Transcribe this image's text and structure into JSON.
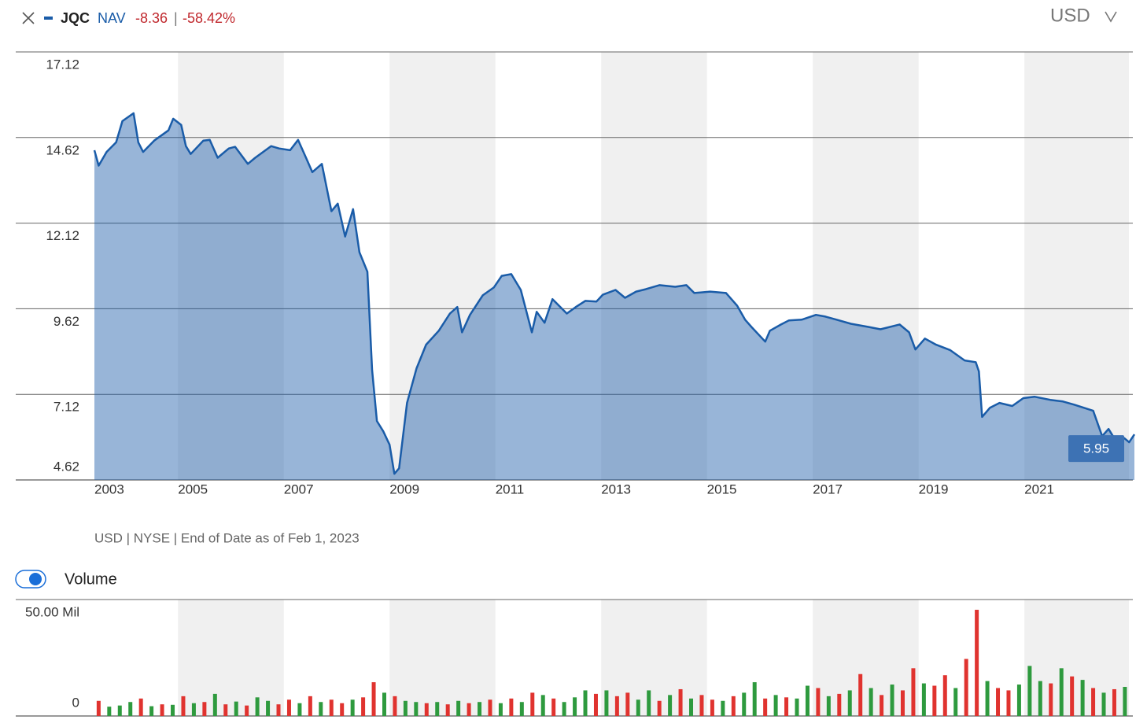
{
  "header": {
    "measure": "NAV",
    "change": "-8.36",
    "separator": "|",
    "change_pct": "-58.42%",
    "currency": "USD",
    "note": "USD | NYSE | End of Date as of Feb 1, 2023"
  },
  "chart_data": [
    {
      "type": "area",
      "series": [
        {
          "name": "JQC",
          "color": "#1a5ca8",
          "x": [
            2003.42,
            2003.5,
            2003.65,
            2003.83,
            2003.95,
            2004.16,
            2004.25,
            2004.34,
            2004.55,
            2004.82,
            2004.91,
            2005.06,
            2005.15,
            2005.24,
            2005.48,
            2005.6,
            2005.75,
            2005.96,
            2006.08,
            2006.32,
            2006.46,
            2006.76,
            2006.91,
            2007.12,
            2007.27,
            2007.42,
            2007.54,
            2007.72,
            2007.9,
            2008.02,
            2008.16,
            2008.31,
            2008.43,
            2008.58,
            2008.67,
            2008.76,
            2008.88,
            2009.0,
            2009.09,
            2009.18,
            2009.33,
            2009.51,
            2009.69,
            2009.93,
            2010.14,
            2010.28,
            2010.37,
            2010.52,
            2010.76,
            2010.97,
            2011.12,
            2011.3,
            2011.48,
            2011.69,
            2011.78,
            2011.93,
            2012.08,
            2012.35,
            2012.52,
            2012.7,
            2012.91,
            2013.03,
            2013.27,
            2013.45,
            2013.66,
            2013.84,
            2014.1,
            2014.4,
            2014.61,
            2014.76,
            2015.06,
            2015.36,
            2015.57,
            2015.72,
            2015.84,
            2016.1,
            2016.19,
            2016.4,
            2016.55,
            2016.79,
            2017.06,
            2017.24,
            2017.45,
            2017.72,
            2018.05,
            2018.28,
            2018.64,
            2018.82,
            2018.94,
            2019.12,
            2019.33,
            2019.6,
            2019.87,
            2020.08,
            2020.14,
            2020.2,
            2020.35,
            2020.53,
            2020.77,
            2020.98,
            2021.19,
            2021.49,
            2021.73,
            2021.94,
            2022.3,
            2022.47,
            2022.59,
            2022.71,
            2022.89,
            2022.98,
            2023.08
          ],
          "values": [
            14.25,
            13.8,
            14.2,
            14.48,
            15.1,
            15.33,
            14.48,
            14.2,
            14.53,
            14.83,
            15.17,
            14.99,
            14.37,
            14.14,
            14.53,
            14.55,
            14.03,
            14.3,
            14.35,
            13.85,
            14.03,
            14.37,
            14.3,
            14.25,
            14.55,
            14.03,
            13.61,
            13.85,
            12.47,
            12.69,
            11.73,
            12.53,
            11.27,
            10.7,
            7.83,
            6.34,
            6.04,
            5.65,
            4.8,
            4.96,
            6.87,
            7.88,
            8.57,
            8.98,
            9.48,
            9.67,
            8.93,
            9.44,
            10.01,
            10.24,
            10.58,
            10.63,
            10.17,
            8.93,
            9.53,
            9.21,
            9.9,
            9.48,
            9.67,
            9.85,
            9.83,
            10.03,
            10.17,
            9.94,
            10.12,
            10.19,
            10.31,
            10.26,
            10.31,
            10.08,
            10.12,
            10.08,
            9.71,
            9.3,
            9.09,
            8.66,
            8.98,
            9.16,
            9.28,
            9.3,
            9.44,
            9.39,
            9.3,
            9.18,
            9.09,
            9.02,
            9.16,
            8.93,
            8.43,
            8.75,
            8.57,
            8.41,
            8.11,
            8.06,
            7.79,
            6.46,
            6.73,
            6.87,
            6.78,
            7.01,
            7.05,
            6.96,
            6.91,
            6.82,
            6.64,
            5.9,
            6.11,
            5.81,
            5.84,
            5.72,
            5.95
          ]
        }
      ],
      "xlim": [
        2003.42,
        2023.05
      ],
      "xticks": [
        2003,
        2005,
        2007,
        2009,
        2011,
        2013,
        2015,
        2017,
        2019,
        2021
      ],
      "ylim": [
        4.62,
        17.12
      ],
      "yticks": [
        4.62,
        7.12,
        9.62,
        12.12,
        14.62,
        17.12
      ],
      "grid": true
    },
    {
      "type": "bar",
      "title": "Volume",
      "series": [
        {
          "color": "#2e9a3e",
          "x": [
            2003.7,
            2003.9,
            2004.1,
            2004.5,
            2004.9,
            2005.3,
            2005.7,
            2006.1,
            2006.5,
            2006.7,
            2007.3,
            2007.7,
            2008.3,
            2008.9,
            2009.3,
            2009.5,
            2009.9,
            2010.3,
            2010.7,
            2011.1,
            2011.5,
            2011.9,
            2012.3,
            2012.5,
            2012.7,
            2013.1,
            2013.7,
            2013.9,
            2014.3,
            2014.7,
            2015.3,
            2015.7,
            2015.9,
            2016.3,
            2016.7,
            2016.9,
            2017.3,
            2017.7,
            2018.1,
            2018.5,
            2019.1,
            2019.7,
            2020.3,
            2020.9,
            2021.1,
            2021.3,
            2021.7,
            2022.1,
            2022.5,
            2022.9
          ],
          "values": [
            4.0,
            4.5,
            6.0,
            4.2,
            4.8,
            5.5,
            9.5,
            6.2,
            8.0,
            6.5,
            5.5,
            6.0,
            7.0,
            10.0,
            6.5,
            6.0,
            6.0,
            6.5,
            6.0,
            5.5,
            6.0,
            9.0,
            6.0,
            8.0,
            11.0,
            11.0,
            7.0,
            11.0,
            9.0,
            7.5,
            6.5,
            10.0,
            14.5,
            9.0,
            7.5,
            13.0,
            8.5,
            11.0,
            12.0,
            13.5,
            14.0,
            12.0,
            15.0,
            13.5,
            21.5,
            15.0,
            20.5,
            15.5,
            10.0,
            12.5
          ]
        },
        {
          "color": "#e0332f",
          "x": [
            2003.5,
            2004.3,
            2004.7,
            2005.1,
            2005.5,
            2005.9,
            2006.3,
            2006.9,
            2007.1,
            2007.5,
            2007.9,
            2008.1,
            2008.5,
            2008.7,
            2009.1,
            2009.7,
            2010.1,
            2010.5,
            2010.9,
            2011.3,
            2011.7,
            2012.1,
            2012.9,
            2013.3,
            2013.5,
            2014.1,
            2014.5,
            2014.9,
            2015.1,
            2015.5,
            2016.1,
            2016.5,
            2017.1,
            2017.5,
            2017.9,
            2018.3,
            2018.7,
            2018.9,
            2019.3,
            2019.5,
            2019.9,
            2020.1,
            2020.5,
            2020.7,
            2021.5,
            2021.9,
            2022.3,
            2022.7
          ],
          "values": [
            6.5,
            7.5,
            5.0,
            8.5,
            6.0,
            5.0,
            4.5,
            5.0,
            7.0,
            8.5,
            7.0,
            5.5,
            8.0,
            14.5,
            8.5,
            5.5,
            5.0,
            5.5,
            7.0,
            7.5,
            10.0,
            7.5,
            9.5,
            8.5,
            10.0,
            6.5,
            11.5,
            9.0,
            7.0,
            8.5,
            7.5,
            8.0,
            12.0,
            9.5,
            18.0,
            9.0,
            11.0,
            20.5,
            13.0,
            17.5,
            24.5,
            45.6,
            12.0,
            11.0,
            14.0,
            17.0,
            12.0,
            11.5
          ]
        }
      ],
      "xlim": [
        2003.42,
        2023.05
      ],
      "xticks": [
        2003,
        2005,
        2007,
        2009,
        2011,
        2013,
        2015,
        2017,
        2019,
        2021
      ],
      "ylim": [
        0,
        50
      ],
      "yticks": [
        0,
        {
          "value": 50,
          "label": "50.00 Mil"
        }
      ],
      "grid": true
    }
  ]
}
